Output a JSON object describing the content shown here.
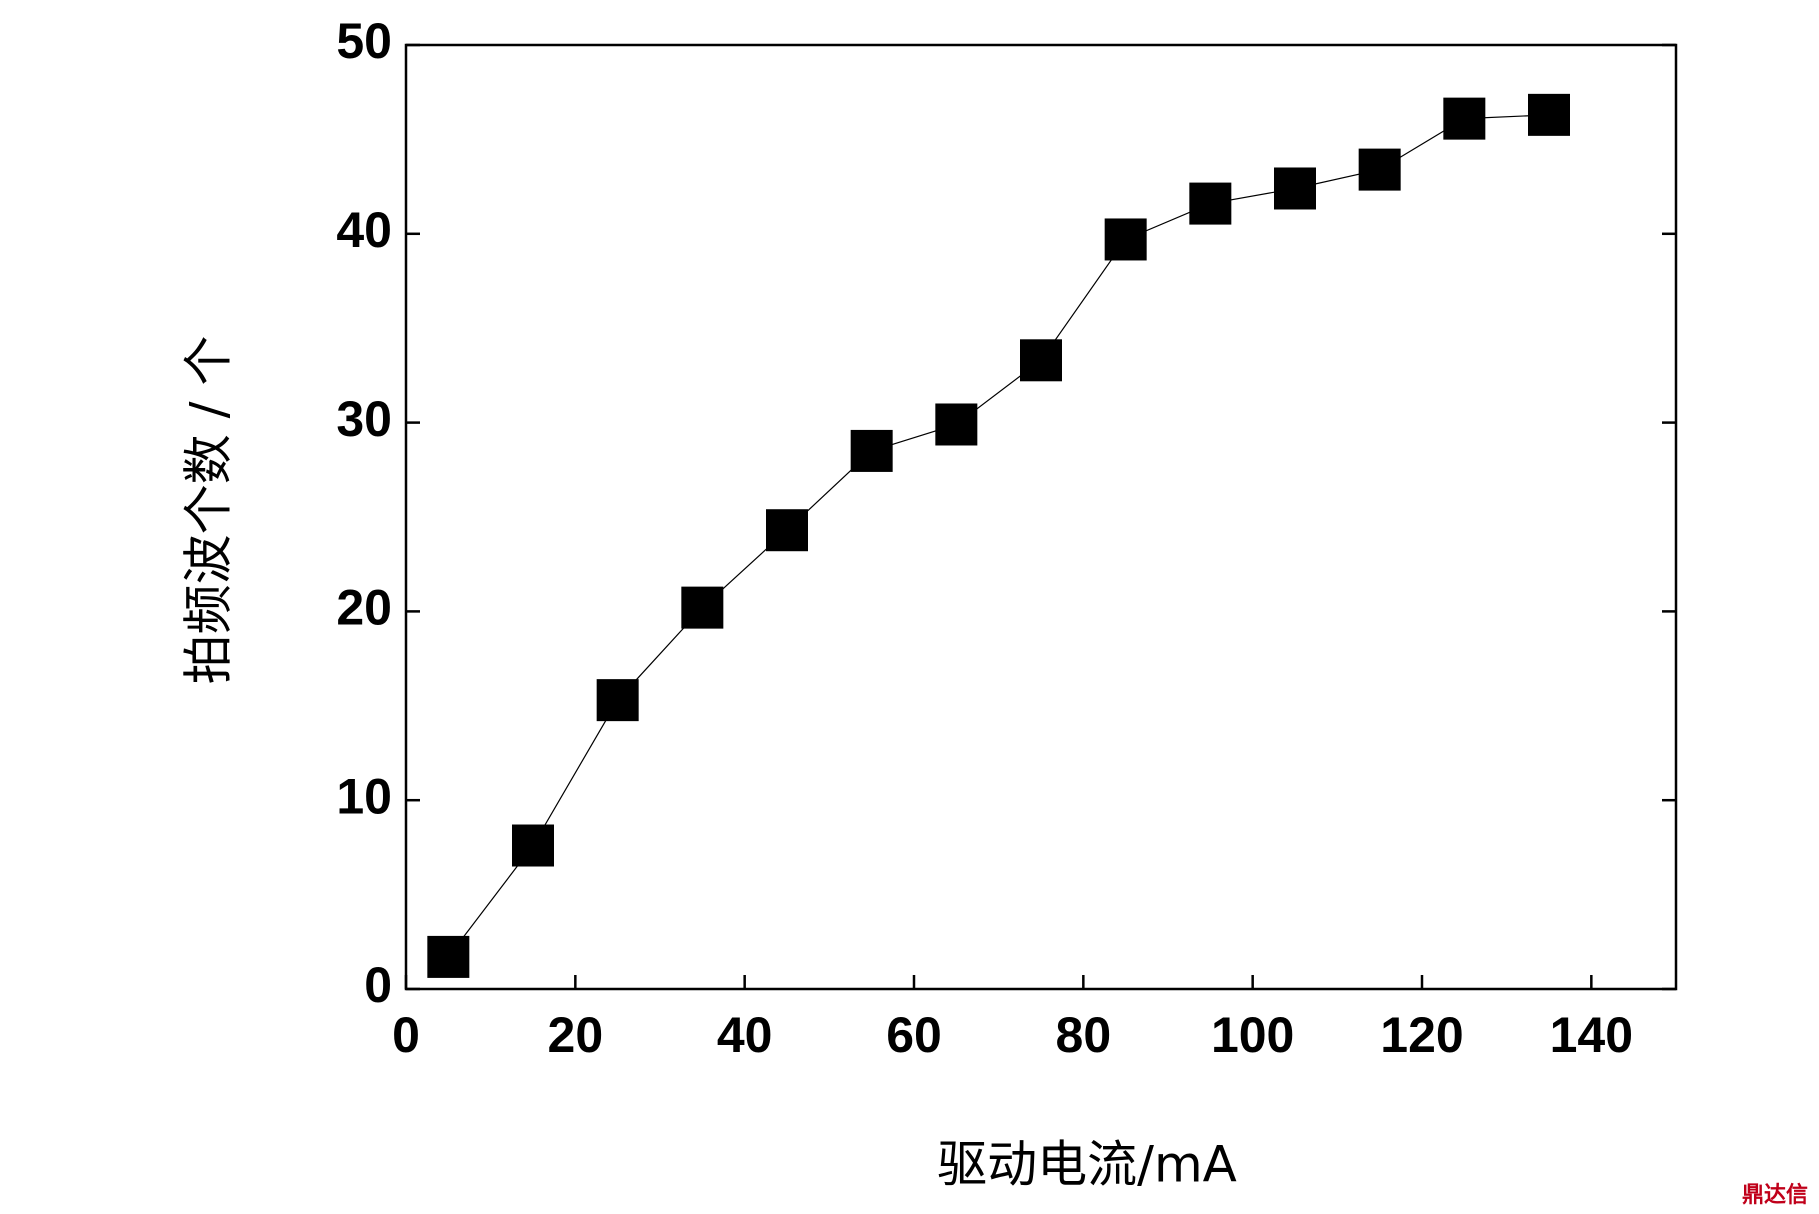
{
  "chart_data": {
    "type": "line",
    "x_label": "驱动电流/mA",
    "y_label": "拍频波个数 / 个",
    "x": [
      5,
      15,
      25,
      35,
      45,
      55,
      65,
      75,
      85,
      95,
      105,
      115,
      125,
      135
    ],
    "series": [
      {
        "color": "#000000",
        "values": [
          1.7,
          7.6,
          15.3,
          20.2,
          24.3,
          28.5,
          29.9,
          33.3,
          39.7,
          41.6,
          42.4,
          43.4,
          46.1,
          46.3
        ]
      }
    ],
    "xlim": [
      0,
      150
    ],
    "xticks": [
      0,
      20,
      40,
      60,
      80,
      100,
      120,
      140
    ],
    "ylim": [
      0,
      50
    ],
    "yticks": [
      0,
      10,
      20,
      30,
      40,
      50
    ],
    "watermark": "鼎达信"
  }
}
